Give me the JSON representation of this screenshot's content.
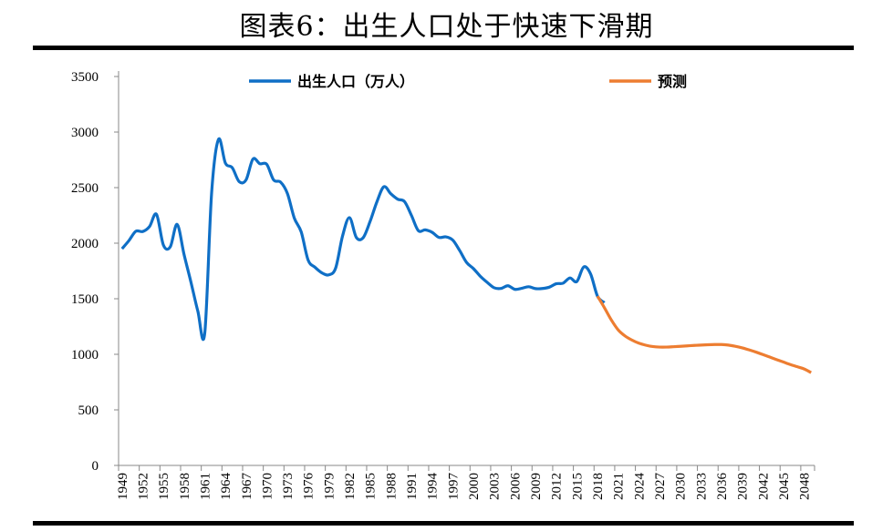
{
  "chart_data": {
    "type": "line",
    "title": "图表6：出生人口处于快速下滑期",
    "xlabel": "",
    "ylabel": "",
    "ylim": [
      0,
      3500
    ],
    "yticks": [
      0,
      500,
      1000,
      1500,
      2000,
      2500,
      3000,
      3500
    ],
    "xticks": [
      1949,
      1952,
      1955,
      1958,
      1961,
      1964,
      1967,
      1970,
      1973,
      1976,
      1979,
      1982,
      1985,
      1988,
      1991,
      1994,
      1997,
      2000,
      2003,
      2006,
      2009,
      2012,
      2015,
      2018,
      2021,
      2024,
      2027,
      2030,
      2033,
      2036,
      2039,
      2042,
      2045,
      2048
    ],
    "xlim": [
      1949,
      2049
    ],
    "grid": false,
    "legend": "top",
    "series": [
      {
        "name": "出生人口（万人）",
        "color": "#0F6FC6",
        "x": [
          1949,
          1950,
          1951,
          1952,
          1953,
          1954,
          1955,
          1956,
          1957,
          1958,
          1959,
          1960,
          1961,
          1962,
          1963,
          1964,
          1965,
          1966,
          1967,
          1968,
          1969,
          1970,
          1971,
          1972,
          1973,
          1974,
          1975,
          1976,
          1977,
          1978,
          1979,
          1980,
          1981,
          1982,
          1983,
          1984,
          1985,
          1986,
          1987,
          1988,
          1989,
          1990,
          1991,
          1992,
          1993,
          1994,
          1995,
          1996,
          1997,
          1998,
          1999,
          2000,
          2001,
          2002,
          2003,
          2004,
          2005,
          2006,
          2007,
          2008,
          2009,
          2010,
          2011,
          2012,
          2013,
          2014,
          2015,
          2016,
          2017,
          2018,
          2019
        ],
        "values": [
          1950,
          2023,
          2107,
          2105,
          2151,
          2260,
          1984,
          1967,
          2169,
          1899,
          1650,
          1389,
          1188,
          2451,
          2934,
          2721,
          2679,
          2554,
          2570,
          2757,
          2715,
          2710,
          2569,
          2550,
          2447,
          2226,
          2102,
          1849,
          1783,
          1733,
          1715,
          1776,
          2064,
          2230,
          2052,
          2050,
          2196,
          2374,
          2508,
          2445,
          2396,
          2374,
          2250,
          2113,
          2120,
          2098,
          2052,
          2057,
          2028,
          1934,
          1827,
          1771,
          1702,
          1647,
          1599,
          1593,
          1617,
          1585,
          1594,
          1608,
          1591,
          1592,
          1604,
          1635,
          1640,
          1687,
          1655,
          1786,
          1723,
          1523,
          1465
        ]
      },
      {
        "name": "预测",
        "color": "#ED7D31",
        "x": [
          2018,
          2019,
          2020,
          2021,
          2022,
          2023,
          2024,
          2025,
          2026,
          2027,
          2028,
          2029,
          2030,
          2031,
          2032,
          2033,
          2034,
          2035,
          2036,
          2037,
          2038,
          2039,
          2040,
          2041,
          2042,
          2043,
          2044,
          2045,
          2046,
          2047,
          2048,
          2049
        ],
        "values": [
          1523,
          1420,
          1310,
          1220,
          1165,
          1128,
          1100,
          1082,
          1070,
          1065,
          1065,
          1068,
          1072,
          1076,
          1080,
          1083,
          1086,
          1088,
          1088,
          1083,
          1072,
          1058,
          1040,
          1020,
          998,
          975,
          952,
          930,
          908,
          888,
          868,
          835
        ]
      }
    ]
  }
}
